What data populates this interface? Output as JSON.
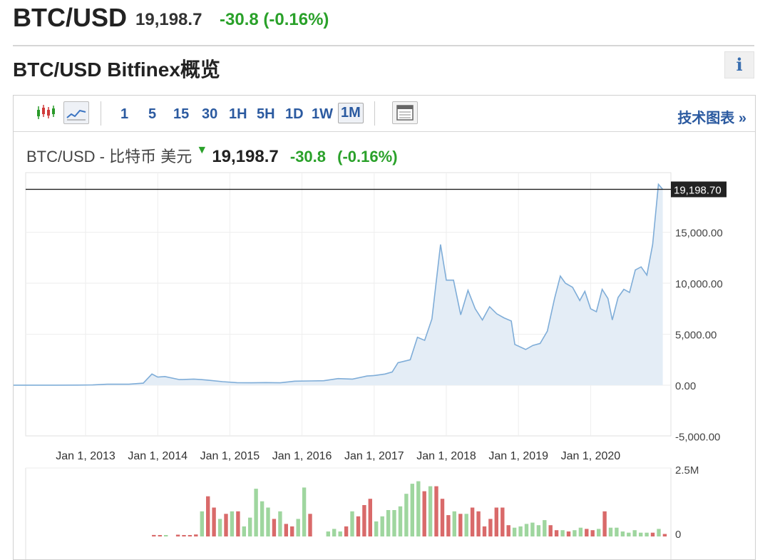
{
  "header": {
    "symbol": "BTC/USD",
    "price": "19,198.7",
    "change": "-30.8 (-0.16%)"
  },
  "section": {
    "title": "BTC/USD Bitfinex概览",
    "info_icon": "i"
  },
  "toolbar": {
    "timeframes": [
      "1",
      "5",
      "15",
      "30",
      "1H",
      "5H",
      "1D",
      "1W",
      "1M"
    ],
    "active_timeframe": "1M",
    "tech_link": "技术图表 »"
  },
  "chart_header": {
    "name": "BTC/USD - 比特币 美元",
    "price": "19,198.7",
    "change": "-30.8",
    "change_pct": "(-0.16%)"
  },
  "chart_data": {
    "type": "area",
    "ylim": [
      -5000,
      20000
    ],
    "yticks": [
      "15,000.00",
      "10,000.00",
      "5,000.00",
      "0.00",
      "-5,000.00"
    ],
    "ytick_values": [
      15000,
      10000,
      5000,
      0,
      -5000
    ],
    "last_price_label": "19,198.70",
    "last_price": 19198.7,
    "xlabels": [
      "Jan 1, 2013",
      "Jan 1, 2014",
      "Jan 1, 2015",
      "Jan 1, 2016",
      "Jan 1, 2017",
      "Jan 1, 2018",
      "Jan 1, 2019",
      "Jan 1, 2020"
    ],
    "x_start": 2012.0,
    "x_end": 2020.92,
    "price_points": [
      [
        2012.0,
        5
      ],
      [
        2012.3,
        6
      ],
      [
        2012.6,
        10
      ],
      [
        2012.9,
        12
      ],
      [
        2013.1,
        30
      ],
      [
        2013.3,
        100
      ],
      [
        2013.6,
        100
      ],
      [
        2013.8,
        200
      ],
      [
        2013.92,
        1100
      ],
      [
        2014.0,
        800
      ],
      [
        2014.1,
        850
      ],
      [
        2014.3,
        550
      ],
      [
        2014.5,
        600
      ],
      [
        2014.6,
        550
      ],
      [
        2014.7,
        500
      ],
      [
        2014.9,
        350
      ],
      [
        2015.1,
        250
      ],
      [
        2015.3,
        240
      ],
      [
        2015.5,
        260
      ],
      [
        2015.7,
        240
      ],
      [
        2015.9,
        400
      ],
      [
        2016.1,
        420
      ],
      [
        2016.3,
        440
      ],
      [
        2016.5,
        650
      ],
      [
        2016.7,
        600
      ],
      [
        2016.9,
        900
      ],
      [
        2017.0,
        950
      ],
      [
        2017.15,
        1100
      ],
      [
        2017.25,
        1300
      ],
      [
        2017.33,
        2200
      ],
      [
        2017.5,
        2500
      ],
      [
        2017.6,
        4700
      ],
      [
        2017.7,
        4400
      ],
      [
        2017.8,
        6500
      ],
      [
        2017.92,
        13800
      ],
      [
        2018.0,
        10300
      ],
      [
        2018.1,
        10300
      ],
      [
        2018.2,
        6900
      ],
      [
        2018.3,
        9300
      ],
      [
        2018.4,
        7500
      ],
      [
        2018.5,
        6400
      ],
      [
        2018.6,
        7700
      ],
      [
        2018.7,
        7000
      ],
      [
        2018.8,
        6600
      ],
      [
        2018.9,
        6300
      ],
      [
        2018.95,
        4000
      ],
      [
        2019.1,
        3500
      ],
      [
        2019.2,
        3900
      ],
      [
        2019.3,
        4100
      ],
      [
        2019.4,
        5300
      ],
      [
        2019.5,
        8500
      ],
      [
        2019.58,
        10700
      ],
      [
        2019.65,
        10000
      ],
      [
        2019.75,
        9600
      ],
      [
        2019.85,
        8300
      ],
      [
        2019.92,
        9200
      ],
      [
        2020.0,
        7500
      ],
      [
        2020.08,
        7200
      ],
      [
        2020.16,
        9400
      ],
      [
        2020.24,
        8500
      ],
      [
        2020.3,
        6400
      ],
      [
        2020.38,
        8600
      ],
      [
        2020.46,
        9400
      ],
      [
        2020.54,
        9100
      ],
      [
        2020.62,
        11300
      ],
      [
        2020.7,
        11600
      ],
      [
        2020.78,
        10800
      ],
      [
        2020.86,
        13800
      ],
      [
        2020.94,
        19700
      ],
      [
        2021.0,
        19198.7
      ]
    ],
    "volume_ylabels": [
      "2.5M",
      "0"
    ],
    "volume_max": 2500000,
    "volume_start": 2013.95,
    "volume_step": 0.0833,
    "volume": [
      [
        60000,
        "d"
      ],
      [
        40000,
        "d"
      ],
      [
        30000,
        "u"
      ],
      [
        0,
        "n"
      ],
      [
        70000,
        "d"
      ],
      [
        40000,
        "d"
      ],
      [
        40000,
        "d"
      ],
      [
        80000,
        "d"
      ],
      [
        1000000,
        "u"
      ],
      [
        1600000,
        "d"
      ],
      [
        1150000,
        "d"
      ],
      [
        700000,
        "u"
      ],
      [
        900000,
        "d"
      ],
      [
        1000000,
        "u"
      ],
      [
        1000000,
        "d"
      ],
      [
        400000,
        "u"
      ],
      [
        750000,
        "u"
      ],
      [
        1900000,
        "u"
      ],
      [
        1400000,
        "u"
      ],
      [
        1150000,
        "u"
      ],
      [
        700000,
        "d"
      ],
      [
        1000000,
        "u"
      ],
      [
        500000,
        "d"
      ],
      [
        400000,
        "d"
      ],
      [
        700000,
        "u"
      ],
      [
        1950000,
        "u"
      ],
      [
        900000,
        "d"
      ],
      [
        0,
        "n"
      ],
      [
        0,
        "n"
      ],
      [
        200000,
        "u"
      ],
      [
        300000,
        "u"
      ],
      [
        200000,
        "u"
      ],
      [
        400000,
        "d"
      ],
      [
        1000000,
        "u"
      ],
      [
        800000,
        "d"
      ],
      [
        1250000,
        "d"
      ],
      [
        1500000,
        "d"
      ],
      [
        600000,
        "u"
      ],
      [
        800000,
        "u"
      ],
      [
        1050000,
        "u"
      ],
      [
        1050000,
        "u"
      ],
      [
        1200000,
        "u"
      ],
      [
        1700000,
        "u"
      ],
      [
        2100000,
        "u"
      ],
      [
        2200000,
        "u"
      ],
      [
        1800000,
        "d"
      ],
      [
        2000000,
        "u"
      ],
      [
        2000000,
        "d"
      ],
      [
        1500000,
        "d"
      ],
      [
        850000,
        "d"
      ],
      [
        1000000,
        "u"
      ],
      [
        900000,
        "d"
      ],
      [
        900000,
        "u"
      ],
      [
        1150000,
        "d"
      ],
      [
        1000000,
        "d"
      ],
      [
        400000,
        "d"
      ],
      [
        700000,
        "d"
      ],
      [
        1150000,
        "d"
      ],
      [
        1150000,
        "d"
      ],
      [
        450000,
        "d"
      ],
      [
        350000,
        "u"
      ],
      [
        400000,
        "u"
      ],
      [
        500000,
        "u"
      ],
      [
        550000,
        "u"
      ],
      [
        450000,
        "u"
      ],
      [
        650000,
        "u"
      ],
      [
        450000,
        "d"
      ],
      [
        250000,
        "d"
      ],
      [
        250000,
        "u"
      ],
      [
        200000,
        "d"
      ],
      [
        250000,
        "u"
      ],
      [
        350000,
        "u"
      ],
      [
        300000,
        "d"
      ],
      [
        250000,
        "d"
      ],
      [
        300000,
        "u"
      ],
      [
        1000000,
        "d"
      ],
      [
        350000,
        "u"
      ],
      [
        350000,
        "u"
      ],
      [
        200000,
        "u"
      ],
      [
        150000,
        "u"
      ],
      [
        250000,
        "u"
      ],
      [
        150000,
        "u"
      ],
      [
        150000,
        "u"
      ],
      [
        150000,
        "d"
      ],
      [
        300000,
        "u"
      ],
      [
        100000,
        "d"
      ]
    ]
  },
  "colors": {
    "line": "#7fadd8",
    "area": "#e4edf6",
    "up": "#9fd69f",
    "down": "#d96a6a",
    "link": "#2b5aa0",
    "green": "#2aa12a"
  }
}
